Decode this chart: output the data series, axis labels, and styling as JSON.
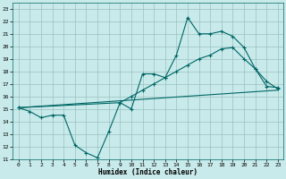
{
  "xlabel": "Humidex (Indice chaleur)",
  "x_ticks": [
    0,
    1,
    2,
    3,
    4,
    5,
    6,
    7,
    8,
    9,
    10,
    11,
    12,
    13,
    14,
    15,
    16,
    17,
    18,
    19,
    20,
    21,
    22,
    23
  ],
  "ylim": [
    11,
    23.5
  ],
  "xlim": [
    -0.5,
    23.5
  ],
  "yticks": [
    11,
    12,
    13,
    14,
    15,
    16,
    17,
    18,
    19,
    20,
    21,
    22,
    23
  ],
  "line1_x": [
    0,
    1,
    2,
    3,
    4,
    5,
    6,
    7,
    8,
    9,
    10,
    11,
    12,
    13,
    14,
    15,
    16,
    17,
    18,
    19,
    20,
    21,
    22,
    23
  ],
  "line1_y": [
    15.1,
    14.8,
    14.3,
    14.5,
    14.5,
    12.1,
    11.5,
    11.1,
    13.2,
    15.5,
    15.0,
    17.8,
    17.8,
    17.5,
    19.3,
    22.3,
    21.0,
    21.0,
    21.2,
    20.8,
    19.9,
    18.2,
    16.8,
    16.7
  ],
  "line2_x": [
    0,
    9,
    10,
    11,
    12,
    13,
    14,
    15,
    16,
    17,
    18,
    19,
    20,
    21,
    22,
    23
  ],
  "line2_y": [
    15.1,
    15.5,
    16.0,
    16.5,
    17.0,
    17.5,
    18.0,
    18.5,
    19.0,
    19.3,
    19.8,
    19.9,
    19.0,
    18.2,
    17.2,
    16.6
  ],
  "line3_x": [
    0,
    23
  ],
  "line3_y": [
    15.1,
    16.5
  ],
  "color": "#006666",
  "bg_color": "#c8eaea",
  "grid_color": "#9bbfbf"
}
